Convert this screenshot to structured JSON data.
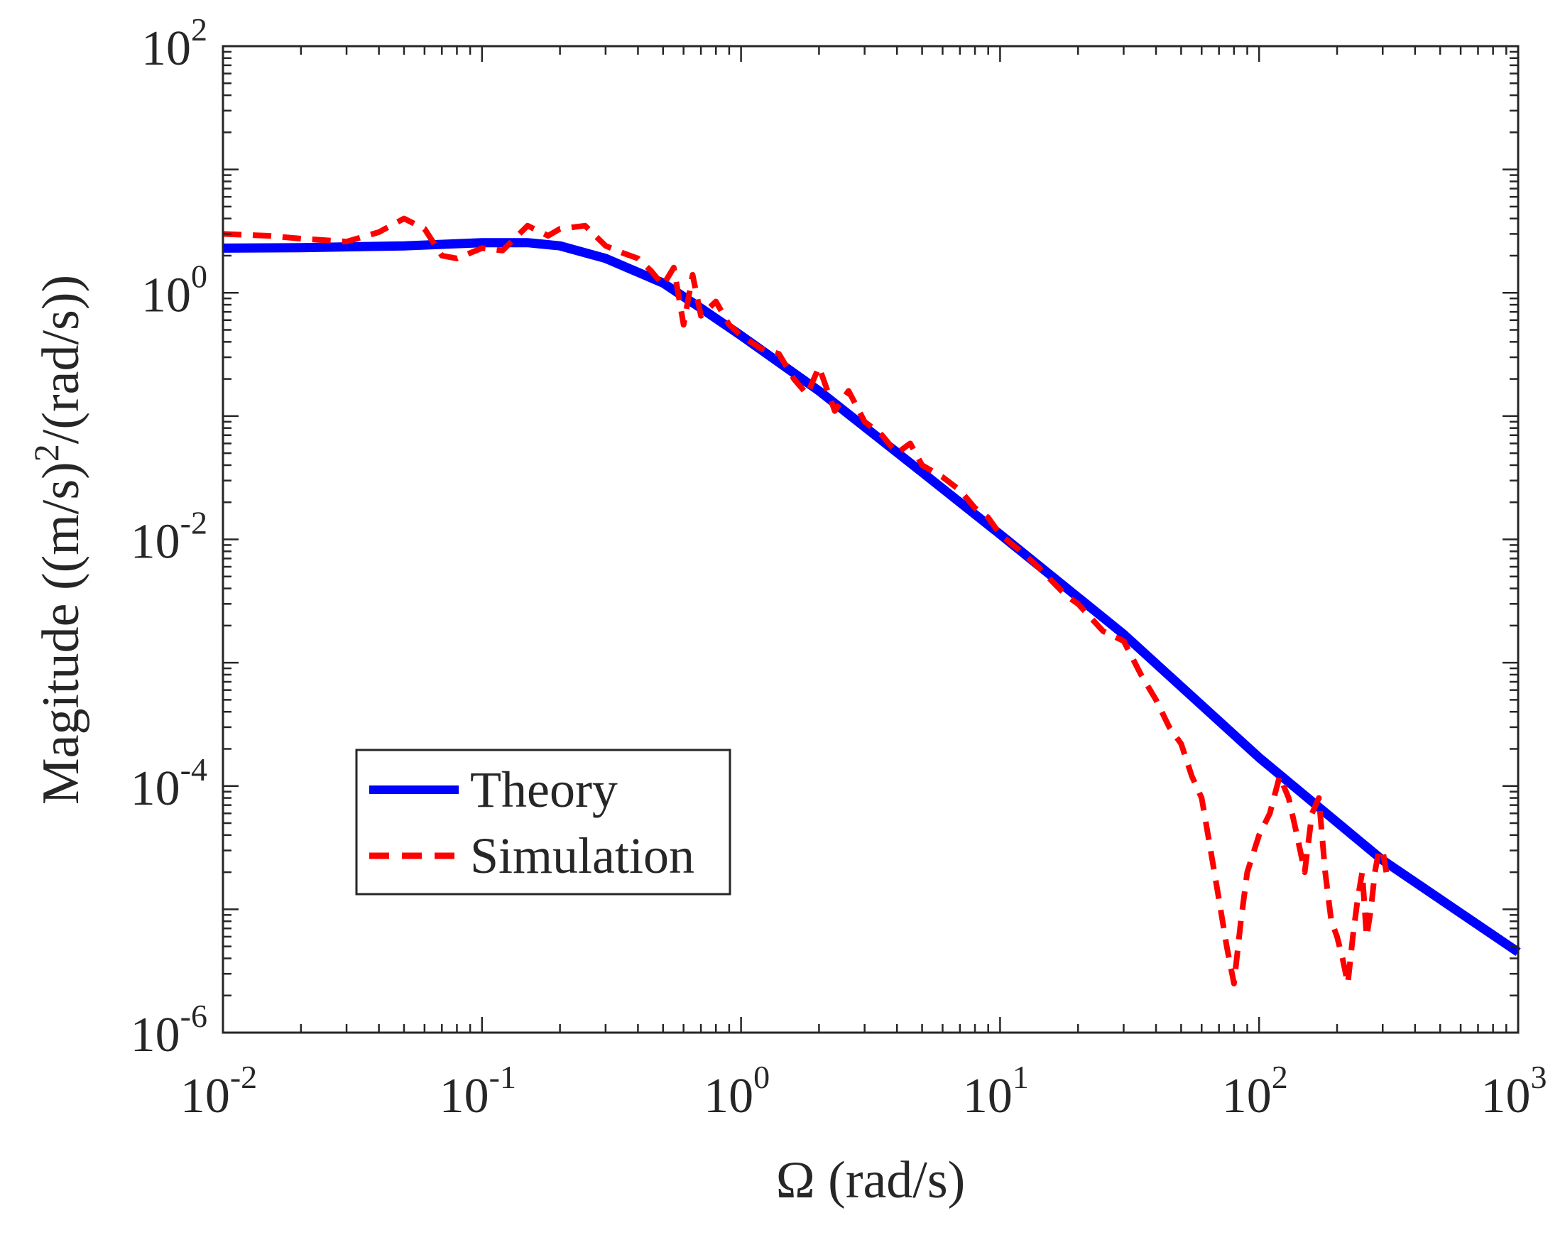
{
  "chart_data": {
    "type": "line",
    "title": "",
    "xscale": "log",
    "yscale": "log",
    "xlabel": "Ω (rad/s)",
    "ylabel": {
      "prefix": "Magitude ((m/s)",
      "exponent": "2",
      "suffix": "/(rad/s))"
    },
    "xlim": [
      0.01,
      1000
    ],
    "ylim": [
      1e-06,
      100
    ],
    "grid": false,
    "xticks": [
      {
        "value": 0.01,
        "base": "10",
        "exp": "-2"
      },
      {
        "value": 0.1,
        "base": "10",
        "exp": "-1"
      },
      {
        "value": 1,
        "base": "10",
        "exp": "0"
      },
      {
        "value": 10,
        "base": "10",
        "exp": "1"
      },
      {
        "value": 100,
        "base": "10",
        "exp": "2"
      },
      {
        "value": 1000,
        "base": "10",
        "exp": "3"
      }
    ],
    "yticks": [
      {
        "value": 1e-06,
        "base": "10",
        "exp": "-6"
      },
      {
        "value": 0.0001,
        "base": "10",
        "exp": "-4"
      },
      {
        "value": 0.01,
        "base": "10",
        "exp": "-2"
      },
      {
        "value": 1,
        "base": "10",
        "exp": "0"
      },
      {
        "value": 100,
        "base": "10",
        "exp": "2"
      }
    ],
    "legend": {
      "position": "lower-left",
      "entries": [
        "Theory",
        "Simulation"
      ]
    },
    "series": [
      {
        "name": "Theory",
        "color": "#0000ff",
        "style": "solid",
        "x": [
          0.01,
          0.02,
          0.05,
          0.1,
          0.15,
          0.2,
          0.3,
          0.5,
          0.7,
          1,
          2,
          5,
          10,
          30,
          100,
          300,
          1000
        ],
        "y": [
          2.3,
          2.32,
          2.4,
          2.55,
          2.55,
          2.4,
          1.9,
          1.2,
          0.75,
          0.45,
          0.16,
          0.035,
          0.011,
          0.0017,
          0.00017,
          2.5e-05,
          4.5e-06
        ]
      },
      {
        "name": "Simulation",
        "color": "#ff0000",
        "style": "dashed",
        "x": [
          0.01,
          0.015,
          0.02,
          0.03,
          0.04,
          0.05,
          0.06,
          0.07,
          0.08,
          0.1,
          0.12,
          0.15,
          0.18,
          0.2,
          0.25,
          0.3,
          0.35,
          0.4,
          0.45,
          0.5,
          0.55,
          0.6,
          0.65,
          0.7,
          0.8,
          0.9,
          1,
          1.2,
          1.4,
          1.6,
          1.8,
          2,
          2.3,
          2.6,
          3,
          3.5,
          4,
          4.5,
          5,
          6,
          7,
          8,
          9,
          10,
          12,
          14,
          16,
          18,
          20,
          25,
          30,
          35,
          40,
          45,
          50,
          55,
          60,
          65,
          70,
          75,
          80,
          85,
          90,
          100,
          110,
          120,
          130,
          140,
          150,
          160,
          170,
          180,
          190,
          200,
          210,
          220,
          230,
          240,
          250,
          260,
          270,
          280,
          290,
          300,
          310
        ],
        "y": [
          3.0,
          2.9,
          2.75,
          2.6,
          3.1,
          4.0,
          3.3,
          2.0,
          1.9,
          2.3,
          2.2,
          3.5,
          2.9,
          3.3,
          3.5,
          2.4,
          2.1,
          1.9,
          1.5,
          1.15,
          1.6,
          0.55,
          1.4,
          0.65,
          0.85,
          0.55,
          0.45,
          0.35,
          0.32,
          0.2,
          0.15,
          0.25,
          0.11,
          0.16,
          0.09,
          0.07,
          0.05,
          0.06,
          0.04,
          0.032,
          0.025,
          0.018,
          0.015,
          0.011,
          0.008,
          0.006,
          0.0045,
          0.0035,
          0.003,
          0.0018,
          0.0015,
          0.0008,
          0.0005,
          0.0003,
          0.00022,
          0.00012,
          8e-05,
          3e-05,
          1.2e-05,
          5e-06,
          2.5e-06,
          8e-06,
          2e-05,
          4e-05,
          6e-05,
          0.00012,
          8e-05,
          4e-05,
          2e-05,
          6e-05,
          8e-05,
          2e-05,
          8e-06,
          6e-06,
          4e-06,
          2.5e-06,
          6e-06,
          1.2e-05,
          2e-05,
          6e-06,
          1e-05,
          2e-05,
          3e-05,
          3e-05,
          2e-05
        ]
      }
    ]
  }
}
